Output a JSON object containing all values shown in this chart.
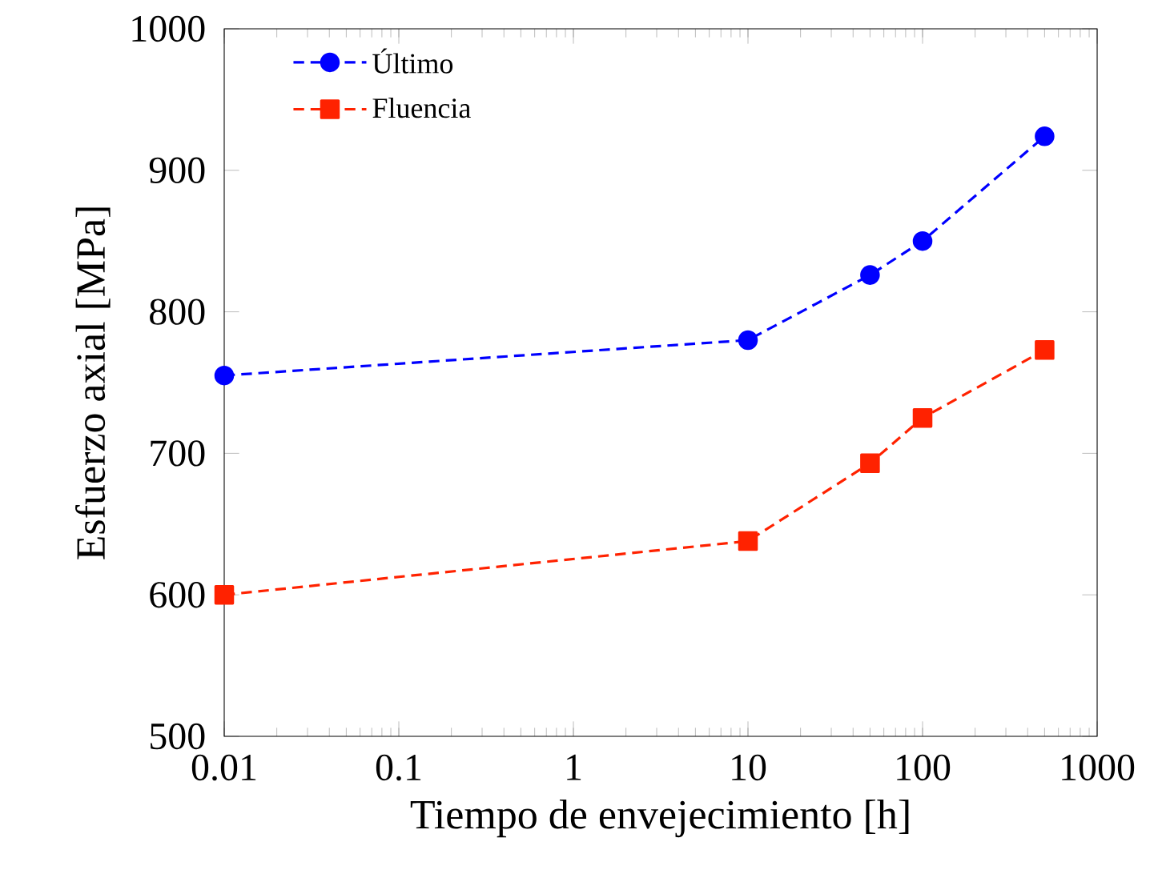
{
  "chart_data": {
    "type": "line",
    "xlabel": "Tiempo de envejecimiento [h]",
    "ylabel": "Esfuerzo axial [MPa]",
    "log": "x",
    "xlim": [
      0.01,
      1000
    ],
    "xticks": [
      0.01,
      0.1,
      1,
      10,
      100,
      1000
    ],
    "ylim": [
      500,
      1000
    ],
    "yticks": [
      500,
      600,
      700,
      800,
      900,
      1000
    ],
    "grid": false,
    "legend": "top left",
    "line_style": "dashed",
    "x": [
      0.01,
      10,
      50,
      100,
      500
    ],
    "series": [
      {
        "name": "Último",
        "color": "#0000ff",
        "marker": "circle",
        "values": [
          755,
          780,
          826,
          850,
          924
        ]
      },
      {
        "name": "Fluencia",
        "color": "#ff2200",
        "marker": "square",
        "values": [
          600,
          638,
          693,
          725,
          773
        ]
      }
    ]
  }
}
